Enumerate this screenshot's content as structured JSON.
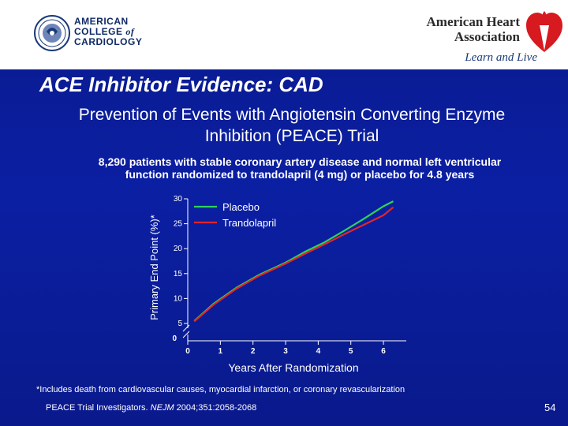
{
  "header": {
    "acc_logo": {
      "line1": "AMERICAN",
      "line2a": "COLLEGE",
      "line2b": "of",
      "line3": "CARDIOLOGY"
    },
    "aha_logo": {
      "line1": "American Heart",
      "line2": "Association",
      "tagline": "Learn and Live"
    }
  },
  "slide": {
    "title": "ACE Inhibitor Evidence: CAD",
    "subtitle_line1": "Prevention of Events with Angiotensin Converting Enzyme",
    "subtitle_line2": "Inhibition (PEACE) Trial",
    "description_line1": "8,290 patients with stable coronary artery disease and normal left ventricular",
    "description_line2": "function randomized to trandolapril (4 mg) or placebo for 4.8 years",
    "footnote": "*Includes death from cardiovascular causes, myocardial infarction, or coronary revascularization",
    "citation_pre": "PEACE Trial Investigators. ",
    "citation_journal": "NEJM",
    "citation_post": " 2004;351:2058-2068",
    "page_number": "54"
  },
  "colors": {
    "background": "#0b1fa3",
    "placebo": "#2fd35a",
    "trandolapril": "#e0252a",
    "axis": "#ffffff"
  },
  "chart_data": {
    "type": "line",
    "title": "",
    "xlabel": "Years After Randomization",
    "ylabel": "Primary End Point (%)*",
    "xlim": [
      0,
      6.7
    ],
    "ylim": [
      0,
      30
    ],
    "axis_break": true,
    "y_break_from": 0,
    "y_break_to": 5,
    "xticks": [
      0,
      1,
      2,
      3,
      4,
      5,
      6
    ],
    "yticks": [
      5,
      10,
      15,
      20,
      25,
      30
    ],
    "y_zero_label": "0",
    "grid": false,
    "legend_position": "top-left",
    "series": [
      {
        "name": "Placebo",
        "color": "#2fd35a",
        "x": [
          0.2,
          0.8,
          1.5,
          2.2,
          3.0,
          3.6,
          4.2,
          4.8,
          5.4,
          6.0,
          6.3
        ],
        "y": [
          5.5,
          9.0,
          12.2,
          14.8,
          17.2,
          19.4,
          21.3,
          23.6,
          26.0,
          28.5,
          29.5
        ]
      },
      {
        "name": "Trandolapril",
        "color": "#e0252a",
        "x": [
          0.2,
          0.8,
          1.5,
          2.2,
          3.0,
          3.6,
          4.2,
          4.8,
          5.4,
          6.0,
          6.3
        ],
        "y": [
          5.4,
          8.8,
          12.0,
          14.6,
          17.0,
          19.0,
          20.9,
          22.9,
          24.8,
          26.7,
          28.3
        ]
      }
    ]
  }
}
